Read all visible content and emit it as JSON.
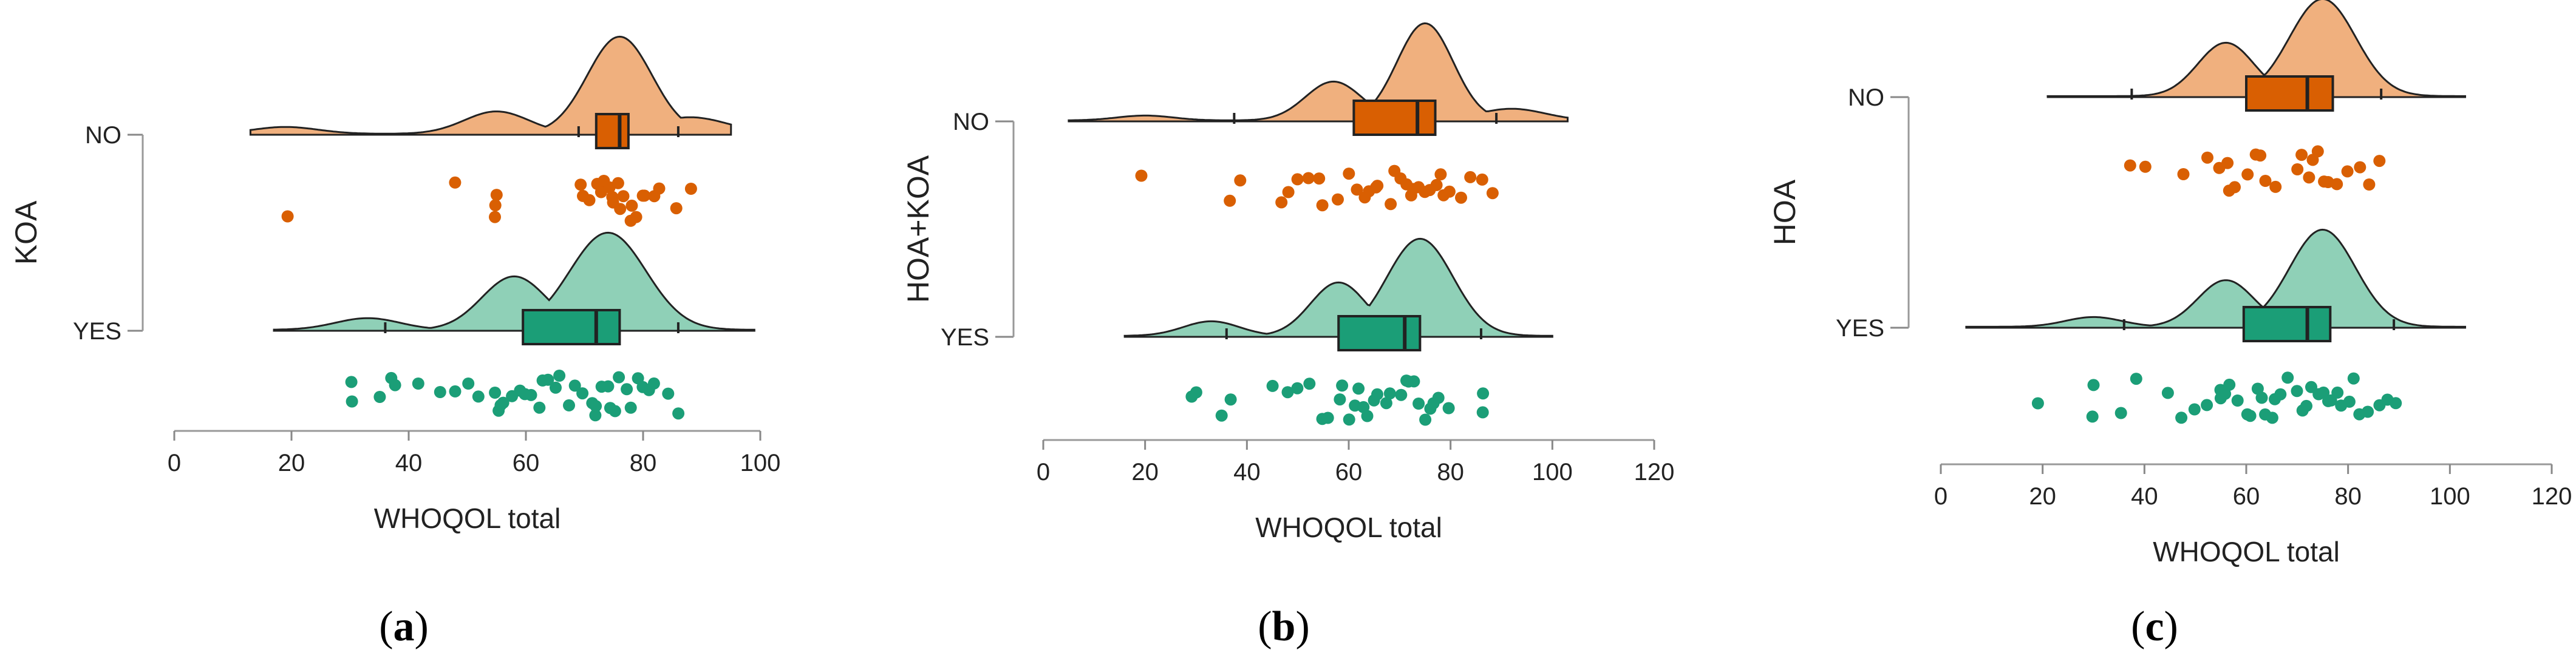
{
  "palette": {
    "no": "#d95f02",
    "no_light": "#f0b07e",
    "yes": "#1b9e77",
    "yes_light": "#8fd0b7",
    "ink": "#222222"
  },
  "chart_data": [
    {
      "type": "raincloud",
      "panel_label": "a",
      "ylabel": "KOA",
      "xlabel": "WHOQOL total",
      "xlim": [
        0,
        100
      ],
      "xticks": [
        0,
        20,
        40,
        60,
        80,
        100
      ],
      "groups": [
        {
          "name": "NO",
          "box": {
            "whisker_low": 69,
            "q1": 72,
            "median": 76,
            "q3": 77.5,
            "whisker_high": 86
          },
          "density_range": [
            13,
            95
          ],
          "density_peaks": [
            [
              19,
              0.07
            ],
            [
              55,
              0.23
            ],
            [
              76,
              1.0
            ],
            [
              88,
              0.17
            ]
          ],
          "points": [
            19,
            48,
            55,
            55,
            55,
            69,
            70,
            71,
            72,
            73,
            73,
            74,
            75,
            75,
            76,
            76,
            77,
            78,
            78,
            79,
            80,
            80,
            82,
            83,
            86,
            88
          ]
        },
        {
          "name": "YES",
          "box": {
            "whisker_low": 36,
            "q1": 59.5,
            "median": 72,
            "q3": 76,
            "whisker_high": 86
          },
          "density_range": [
            17,
            99
          ],
          "density_peaks": [
            [
              33,
              0.12
            ],
            [
              58,
              0.55
            ],
            [
              74,
              1.0
            ]
          ],
          "points": [
            30,
            30,
            35,
            37,
            38,
            42,
            45,
            48,
            50,
            52,
            55,
            55,
            56,
            56,
            58,
            59,
            60,
            61,
            62,
            63,
            64,
            65,
            66,
            67,
            68,
            70,
            71,
            72,
            72,
            73,
            74,
            74,
            75,
            76,
            77,
            78,
            79,
            80,
            81,
            82,
            84,
            86
          ]
        }
      ]
    },
    {
      "type": "raincloud",
      "panel_label": "b",
      "ylabel": "HOA+KOA",
      "xlabel": "WHOQOL total",
      "xlim": [
        0,
        120
      ],
      "xticks": [
        0,
        20,
        40,
        60,
        80,
        100,
        120
      ],
      "groups": [
        {
          "name": "NO",
          "box": {
            "whisker_low": 37.5,
            "q1": 61,
            "median": 73.5,
            "q3": 77,
            "whisker_high": 89
          },
          "density_range": [
            5,
            103
          ],
          "density_peaks": [
            [
              20,
              0.05
            ],
            [
              57,
              0.4
            ],
            [
              75,
              1.0
            ],
            [
              92,
              0.12
            ]
          ],
          "points": [
            19,
            37,
            39,
            47,
            48,
            50,
            52,
            54,
            55,
            58,
            60,
            62,
            63,
            64,
            65,
            66,
            68,
            69,
            70,
            71,
            72,
            73,
            74,
            75,
            76,
            77,
            78,
            79,
            80,
            82,
            84,
            86,
            88
          ]
        },
        {
          "name": "YES",
          "box": {
            "whisker_low": 36,
            "q1": 58,
            "median": 71,
            "q3": 74,
            "whisker_high": 86
          },
          "density_range": [
            16,
            100
          ],
          "density_peaks": [
            [
              33,
              0.15
            ],
            [
              58,
              0.55
            ],
            [
              74,
              1.0
            ]
          ],
          "points": [
            29,
            30,
            35,
            37,
            45,
            48,
            50,
            52,
            55,
            56,
            58,
            59,
            60,
            61,
            62,
            63,
            64,
            65,
            66,
            67,
            68,
            70,
            71,
            72,
            73,
            74,
            75,
            76,
            77,
            78,
            80,
            86,
            86
          ]
        }
      ]
    },
    {
      "type": "raincloud",
      "panel_label": "c",
      "ylabel": "HOA",
      "xlabel": "WHOQOL total",
      "xlim": [
        0,
        120
      ],
      "xticks": [
        0,
        20,
        40,
        60,
        80,
        100,
        120
      ],
      "groups": [
        {
          "name": "NO",
          "box": {
            "whisker_low": 37.5,
            "q1": 60,
            "median": 72,
            "q3": 77,
            "whisker_high": 86.5
          },
          "density_range": [
            21,
            103
          ],
          "density_peaks": [
            [
              56,
              0.55
            ],
            [
              75,
              1.0
            ]
          ],
          "points": [
            37,
            40,
            48,
            52,
            55,
            56,
            57,
            58,
            60,
            62,
            63,
            64,
            66,
            70,
            71,
            72,
            73,
            74,
            75,
            76,
            78,
            80,
            82,
            84,
            86
          ]
        },
        {
          "name": "YES",
          "box": {
            "whisker_low": 36,
            "q1": 59.5,
            "median": 72,
            "q3": 76.5,
            "whisker_high": 89
          },
          "density_range": [
            5,
            103
          ],
          "density_peaks": [
            [
              30,
              0.1
            ],
            [
              56,
              0.48
            ],
            [
              75,
              1.0
            ]
          ],
          "points": [
            19,
            30,
            30,
            35,
            38,
            45,
            47,
            50,
            52,
            55,
            55,
            56,
            57,
            58,
            60,
            61,
            62,
            63,
            64,
            65,
            66,
            67,
            68,
            70,
            71,
            72,
            73,
            74,
            75,
            76,
            77,
            78,
            79,
            80,
            81,
            82,
            84,
            86,
            88,
            89
          ]
        }
      ]
    }
  ]
}
